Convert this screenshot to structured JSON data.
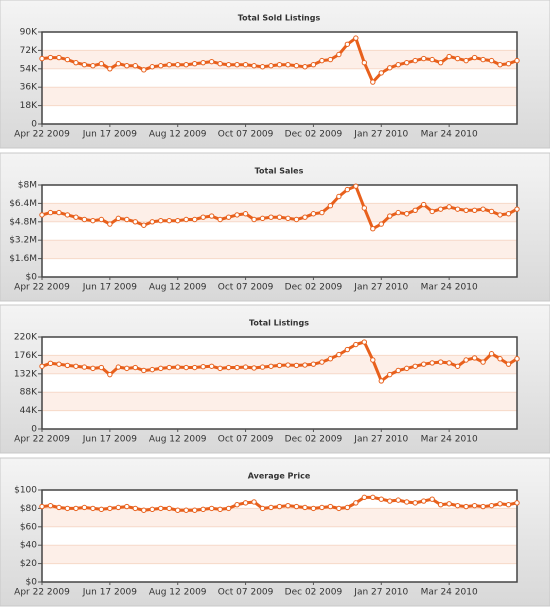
{
  "chart_data": [
    {
      "type": "line",
      "title": "Total Sold Listings",
      "color": "#e8601c",
      "grid": true,
      "categories": [
        "Apr 22 2009",
        null,
        null,
        null,
        null,
        null,
        null,
        null,
        "Jun 17 2009",
        null,
        null,
        null,
        null,
        null,
        null,
        null,
        "Aug 12 2009",
        null,
        null,
        null,
        null,
        null,
        null,
        null,
        "Oct 07 2009",
        null,
        null,
        null,
        null,
        null,
        null,
        null,
        "Dec 02 2009",
        null,
        null,
        null,
        null,
        null,
        null,
        null,
        "Jan 27 2010",
        null,
        null,
        null,
        null,
        null,
        null,
        null,
        "Mar 24 2010",
        null,
        null,
        null,
        null,
        null,
        null,
        null,
        null
      ],
      "values": [
        64,
        65,
        65,
        63,
        60,
        58,
        57,
        59,
        54,
        59,
        57,
        57,
        53,
        56,
        57,
        58,
        58,
        58,
        59,
        60,
        61,
        59,
        58,
        58,
        58,
        57,
        56,
        57,
        58,
        58,
        57,
        56,
        58,
        62,
        63,
        68,
        78,
        84,
        60,
        41,
        50,
        55,
        58,
        60,
        62,
        64,
        63,
        60,
        66,
        64,
        62,
        65,
        63,
        62,
        58,
        59,
        62
      ],
      "ylim": [
        0,
        90
      ],
      "yticks": [
        0,
        {
          "value": 18,
          "label": "18K"
        },
        {
          "value": 36,
          "label": "36K"
        },
        {
          "value": 54,
          "label": "54K"
        },
        {
          "value": 72,
          "label": "72K"
        },
        {
          "value": 90,
          "label": "90K"
        }
      ]
    },
    {
      "type": "line",
      "title": "Total Sales",
      "color": "#e8601c",
      "grid": true,
      "categories": [
        "Apr 22 2009",
        null,
        null,
        null,
        null,
        null,
        null,
        null,
        "Jun 17 2009",
        null,
        null,
        null,
        null,
        null,
        null,
        null,
        "Aug 12 2009",
        null,
        null,
        null,
        null,
        null,
        null,
        null,
        "Oct 07 2009",
        null,
        null,
        null,
        null,
        null,
        null,
        null,
        "Dec 02 2009",
        null,
        null,
        null,
        null,
        null,
        null,
        null,
        "Jan 27 2010",
        null,
        null,
        null,
        null,
        null,
        null,
        null,
        "Mar 24 2010",
        null,
        null,
        null,
        null,
        null,
        null,
        null,
        null
      ],
      "values": [
        5.4,
        5.6,
        5.6,
        5.4,
        5.2,
        5.0,
        4.9,
        5.0,
        4.6,
        5.1,
        5.0,
        4.8,
        4.5,
        4.8,
        4.9,
        4.9,
        4.9,
        5.0,
        5.0,
        5.2,
        5.3,
        5.0,
        5.2,
        5.4,
        5.5,
        5.0,
        5.1,
        5.2,
        5.2,
        5.1,
        5.0,
        5.2,
        5.5,
        5.6,
        6.2,
        7.0,
        7.6,
        7.9,
        6.0,
        4.2,
        4.6,
        5.3,
        5.6,
        5.5,
        5.8,
        6.3,
        5.7,
        5.9,
        6.1,
        5.9,
        5.8,
        5.8,
        5.9,
        5.7,
        5.4,
        5.5,
        5.9
      ],
      "ylim": [
        0,
        8
      ],
      "yticks": [
        {
          "value": 0,
          "label": "$0"
        },
        {
          "value": 1.6,
          "label": "$1.6M"
        },
        {
          "value": 3.2,
          "label": "$3.2M"
        },
        {
          "value": 4.8,
          "label": "$4.8M"
        },
        {
          "value": 6.4,
          "label": "$6.4M"
        },
        {
          "value": 8,
          "label": "$8M"
        }
      ]
    },
    {
      "type": "line",
      "title": "Total Listings",
      "color": "#e8601c",
      "grid": true,
      "categories": [
        "Apr 22 2009",
        null,
        null,
        null,
        null,
        null,
        null,
        null,
        "Jun 17 2009",
        null,
        null,
        null,
        null,
        null,
        null,
        null,
        "Aug 12 2009",
        null,
        null,
        null,
        null,
        null,
        null,
        null,
        "Oct 07 2009",
        null,
        null,
        null,
        null,
        null,
        null,
        null,
        "Dec 02 2009",
        null,
        null,
        null,
        null,
        null,
        null,
        null,
        "Jan 27 2010",
        null,
        null,
        null,
        null,
        null,
        null,
        null,
        "Mar 24 2010",
        null,
        null,
        null,
        null,
        null,
        null,
        null,
        null
      ],
      "values": [
        150,
        157,
        155,
        152,
        150,
        148,
        145,
        147,
        130,
        148,
        145,
        147,
        140,
        142,
        145,
        147,
        148,
        147,
        147,
        149,
        150,
        145,
        147,
        147,
        148,
        146,
        148,
        150,
        152,
        153,
        152,
        153,
        155,
        160,
        168,
        178,
        190,
        202,
        208,
        165,
        115,
        130,
        140,
        145,
        150,
        155,
        158,
        160,
        158,
        150,
        165,
        170,
        160,
        180,
        168,
        155,
        168
      ],
      "ylim": [
        0,
        220
      ],
      "yticks": [
        0,
        {
          "value": 44,
          "label": "44K"
        },
        {
          "value": 88,
          "label": "88K"
        },
        {
          "value": 132,
          "label": "132K"
        },
        {
          "value": 176,
          "label": "176K"
        },
        {
          "value": 220,
          "label": "220K"
        }
      ]
    },
    {
      "type": "line",
      "title": "Average Price",
      "color": "#e8601c",
      "grid": true,
      "categories": [
        "Apr 22 2009",
        null,
        null,
        null,
        null,
        null,
        null,
        null,
        "Jun 17 2009",
        null,
        null,
        null,
        null,
        null,
        null,
        null,
        "Aug 12 2009",
        null,
        null,
        null,
        null,
        null,
        null,
        null,
        "Oct 07 2009",
        null,
        null,
        null,
        null,
        null,
        null,
        null,
        "Dec 02 2009",
        null,
        null,
        null,
        null,
        null,
        null,
        null,
        "Jan 27 2010",
        null,
        null,
        null,
        null,
        null,
        null,
        null,
        "Mar 24 2010",
        null,
        null,
        null,
        null,
        null,
        null,
        null,
        null
      ],
      "values": [
        82,
        83,
        81,
        80,
        80,
        81,
        80,
        79,
        80,
        81,
        82,
        80,
        78,
        79,
        80,
        80,
        78,
        78,
        78,
        79,
        80,
        79,
        80,
        84,
        86,
        87,
        80,
        81,
        82,
        83,
        82,
        81,
        80,
        81,
        82,
        80,
        81,
        86,
        92,
        92,
        90,
        88,
        89,
        87,
        86,
        88,
        90,
        84,
        85,
        83,
        82,
        83,
        82,
        83,
        85,
        84,
        86
      ],
      "ylim": [
        0,
        100
      ],
      "yticks": [
        {
          "value": 0,
          "label": "$0"
        },
        {
          "value": 20,
          "label": "$20"
        },
        {
          "value": 40,
          "label": "$40"
        },
        {
          "value": 60,
          "label": "$60"
        },
        {
          "value": 80,
          "label": "$80"
        },
        {
          "value": 100,
          "label": "$100"
        }
      ]
    }
  ]
}
